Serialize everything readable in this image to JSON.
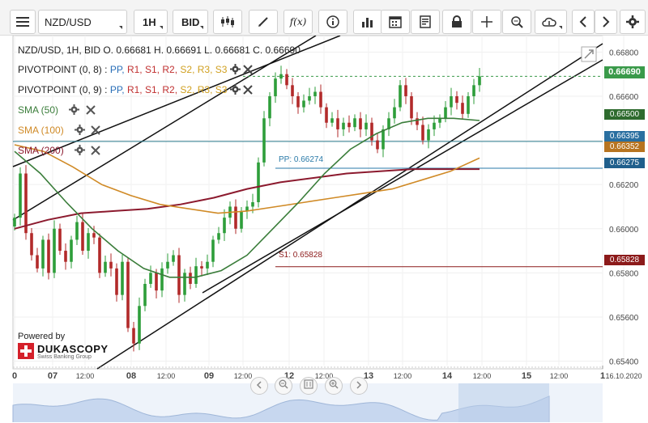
{
  "toolbar": {
    "symbol": "NZD/USD",
    "timeframe": "1H",
    "price_type": "BID",
    "fx_label": "f(x)"
  },
  "header": {
    "ohlc": "NZD/USD, 1H, BID   O. 0.66681 H. 0.66691 L. 0.66681 C. 0.66690"
  },
  "indicators": {
    "pivot1": {
      "name": "PIVOTPOINT (0, 8)",
      "sep": " : ",
      "pp": "PP,",
      "r1": "R1,",
      "s1": "S1,",
      "r2": "R2,",
      "s2": "S2,",
      "r3": "R3,",
      "s3": "S3"
    },
    "pivot2": {
      "name": "PIVOTPOINT (0, 9)",
      "sep": " : ",
      "pp": "PP,",
      "r1": "R1,",
      "s1": "S1,",
      "r2": "R2,",
      "s2": "S2,",
      "r3": "R3,",
      "s3": "S3"
    },
    "sma50": "SMA (50)",
    "sma100": "SMA (100)",
    "sma200": "SMA (200)"
  },
  "annotations": {
    "pp_label": "PP: 0.66274",
    "s1_label": "S1: 0.65828"
  },
  "price_axis": [
    "0.66800",
    "0.66600",
    "0.66400",
    "0.66200",
    "0.66000",
    "0.65800",
    "0.65600",
    "0.65400"
  ],
  "price_tags": {
    "last": "0.66690",
    "sma50": "0.66500",
    "r_line": "0.66395",
    "sma100": "0.66352",
    "pp": "0.66275",
    "s1": "0.65828"
  },
  "time_axis": [
    "0",
    "07",
    "12:00",
    "08",
    "12:00",
    "09",
    "12:00",
    "12",
    "12:00",
    "13",
    "12:00",
    "14",
    "12:00",
    "15",
    "12:00",
    "1",
    "16.10.2020"
  ],
  "branding": {
    "powered_by": "Powered by",
    "name": "DUKASCOPY",
    "tagline": "Swiss Banking Group"
  },
  "colors": {
    "up_candle": "#2e9e3a",
    "down_candle": "#b22a2a",
    "sma50": "#3a7d3a",
    "sma100": "#d08a26",
    "sma200": "#8c1a2e",
    "pp_line": "#2a7aa8",
    "s1_line": "#8c1a1a",
    "last_price": "#3a9a4a",
    "pivot_pp": "#2a6fb8",
    "pivot_r": "#c03030",
    "pivot_s": "#d0a020"
  },
  "chart_data": {
    "type": "candlestick",
    "symbol": "NZD/USD",
    "interval": "1H",
    "ylim": [
      0.6538,
      0.6686
    ],
    "last_close": 0.6669,
    "close_series": [
      0.6605,
      0.6625,
      0.6598,
      0.6588,
      0.6582,
      0.6595,
      0.658,
      0.66,
      0.659,
      0.6585,
      0.6595,
      0.6603,
      0.659,
      0.6598,
      0.6596,
      0.658,
      0.6585,
      0.6582,
      0.657,
      0.6585,
      0.6555,
      0.6548,
      0.6565,
      0.6575,
      0.658,
      0.6572,
      0.6582,
      0.6585,
      0.6588,
      0.657,
      0.658,
      0.6575,
      0.6583,
      0.6582,
      0.6585,
      0.6595,
      0.6598,
      0.6605,
      0.661,
      0.66,
      0.6608,
      0.661,
      0.6612,
      0.663,
      0.665,
      0.666,
      0.6668,
      0.667,
      0.6665,
      0.666,
      0.6655,
      0.6658,
      0.666,
      0.6662,
      0.6655,
      0.6648,
      0.665,
      0.6645,
      0.6648,
      0.6646,
      0.665,
      0.6645,
      0.6648,
      0.664,
      0.6636,
      0.6645,
      0.665,
      0.6655,
      0.6665,
      0.666,
      0.665,
      0.6647,
      0.664,
      0.6645,
      0.6648,
      0.665,
      0.6655,
      0.666,
      0.6657,
      0.6652,
      0.666,
      0.6665,
      0.6669
    ],
    "sma50_series": [
      0.6635,
      0.6625,
      0.6612,
      0.66,
      0.659,
      0.6582,
      0.6578,
      0.6578,
      0.6581,
      0.6588,
      0.66,
      0.6612,
      0.6625,
      0.6636,
      0.6643,
      0.6648,
      0.665,
      0.665,
      0.6649
    ],
    "sma100_series": [
      0.6638,
      0.6635,
      0.6628,
      0.662,
      0.6615,
      0.6611,
      0.6609,
      0.6607,
      0.6608,
      0.661,
      0.6612,
      0.6614,
      0.6616,
      0.6618,
      0.6622,
      0.6626,
      0.6632
    ],
    "sma200_series": [
      0.66,
      0.6604,
      0.6607,
      0.6608,
      0.6609,
      0.6611,
      0.6614,
      0.6618,
      0.6621,
      0.6623,
      0.6625,
      0.6626,
      0.6627,
      0.6627,
      0.6627
    ],
    "pivot_pp": 0.66274,
    "pivot_s1": 0.65828
  }
}
